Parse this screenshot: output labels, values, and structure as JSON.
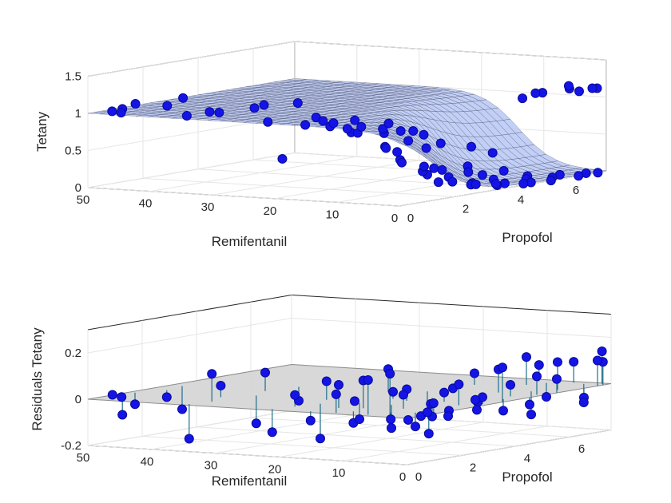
{
  "chart_data": [
    {
      "type": "surface3d",
      "title": "",
      "xlabel": "Remifentanil",
      "ylabel": "Propofol",
      "zlabel": "Tetany",
      "x_ticks": [
        "0",
        "10",
        "20",
        "30",
        "40",
        "50"
      ],
      "y_ticks": [
        "0",
        "2",
        "4",
        "6"
      ],
      "z_ticks": [
        "0",
        "0.5",
        "1",
        "1.5"
      ],
      "xlim": [
        0,
        50
      ],
      "ylim": [
        0,
        7.5
      ],
      "zlim": [
        0,
        1.5
      ],
      "grid": true,
      "colors": {
        "surface": "#b7c7f5",
        "mesh": "#1a1a2e",
        "marker": "#1414e6"
      },
      "model": "fitted surface: Tetany ≈ 1 at high Remifentanil / low Propofol, falling to ≈ 0 at low Remifentanil and moderate-to-high Propofol",
      "series": [
        {
          "points": [
            [
              47,
              0.2,
              1.03
            ],
            [
              48,
              0.8,
              1.02
            ],
            [
              49,
              1.5,
              1.04
            ],
            [
              47,
              2.2,
              0.98
            ],
            [
              48,
              3.0,
              1.03
            ],
            [
              46,
              0.3,
              1.01
            ],
            [
              35,
              0.2,
              1.03
            ],
            [
              34,
              0.8,
              1.05
            ],
            [
              36,
              1.6,
              0.98
            ],
            [
              33,
              2.2,
              1.02
            ],
            [
              35,
              3.0,
              1.0
            ],
            [
              34,
              4.0,
              0.97
            ],
            [
              22,
              0.2,
              1.01
            ],
            [
              21,
              0.5,
              0.5
            ],
            [
              20,
              1.5,
              1.0
            ],
            [
              22,
              2.2,
              0.9
            ],
            [
              21,
              3.0,
              0.7
            ],
            [
              20,
              4.0,
              0.45
            ],
            [
              22,
              5.0,
              0.2
            ],
            [
              21,
              6.0,
              0.03
            ],
            [
              20,
              7.0,
              0.0
            ],
            [
              12,
              0.2,
              1.0
            ],
            [
              11,
              0.6,
              0.95
            ],
            [
              12,
              1.2,
              0.85
            ],
            [
              11,
              2.0,
              0.6
            ],
            [
              12,
              2.8,
              0.35
            ],
            [
              11,
              3.5,
              0.15
            ],
            [
              12,
              4.5,
              0.05
            ],
            [
              11,
              5.5,
              0.02
            ],
            [
              12,
              6.5,
              0.01
            ],
            [
              7,
              0.2,
              1.02
            ],
            [
              6,
              0.8,
              0.9
            ],
            [
              7,
              1.5,
              0.6
            ],
            [
              6,
              2.2,
              0.3
            ],
            [
              7,
              3.0,
              0.1
            ],
            [
              6,
              4.0,
              0.03
            ],
            [
              7,
              5.0,
              0.01
            ],
            [
              6,
              6.0,
              0.0
            ],
            [
              4,
              0.3,
              1.0
            ],
            [
              3,
              1.0,
              0.8
            ],
            [
              4,
              1.8,
              0.4
            ],
            [
              3,
              2.6,
              0.15
            ],
            [
              4,
              3.5,
              0.05
            ],
            [
              3,
              4.5,
              0.01
            ],
            [
              4,
              5.5,
              0.0
            ],
            [
              3,
              6.5,
              0.0
            ],
            [
              2,
              0.5,
              0.97
            ],
            [
              1,
              1.2,
              0.7
            ],
            [
              2,
              2.0,
              0.35
            ],
            [
              1,
              3.0,
              0.1
            ],
            [
              2,
              4.0,
              0.02
            ],
            [
              1,
              5.0,
              0.0
            ],
            [
              2,
              6.0,
              0.0
            ],
            [
              1,
              7.0,
              0.0
            ],
            [
              0,
              0.5,
              0.98
            ],
            [
              0,
              1.5,
              0.75
            ],
            [
              0,
              2.5,
              0.3
            ],
            [
              0,
              3.5,
              0.08
            ],
            [
              0,
              4.5,
              0.02
            ],
            [
              0,
              5.5,
              0.0
            ],
            [
              0,
              6.5,
              0.0
            ],
            [
              0,
              7.2,
              0.0
            ],
            [
              16,
              0.2,
              1.0
            ],
            [
              15,
              1.0,
              0.98
            ],
            [
              16,
              2.0,
              0.95
            ],
            [
              15,
              3.0,
              0.85
            ],
            [
              16,
              4.5,
              0.6
            ],
            [
              15,
              6.0,
              0.35
            ],
            [
              16,
              7.0,
              0.2
            ],
            [
              9,
              6.5,
              1.0
            ],
            [
              8,
              7.0,
              1.05
            ],
            [
              5,
              7.3,
              1.1
            ],
            [
              3,
              7.2,
              1.08
            ],
            [
              1,
              7.4,
              1.12
            ],
            [
              0,
              7.0,
              1.15
            ],
            [
              10,
              7.2,
              1.02
            ],
            [
              6,
              7.5,
              1.12
            ]
          ]
        }
      ]
    },
    {
      "type": "stem3d",
      "title": "",
      "xlabel": "Remifentanil",
      "ylabel": "Propofol",
      "zlabel": "Residuals Tetany",
      "x_ticks": [
        "0",
        "10",
        "20",
        "30",
        "40",
        "50"
      ],
      "y_ticks": [
        "0",
        "2",
        "4",
        "6"
      ],
      "z_ticks": [
        "-0.2",
        "0",
        "0.2"
      ],
      "xlim": [
        0,
        50
      ],
      "ylim": [
        0,
        7.5
      ],
      "zlim": [
        -0.2,
        0.3
      ],
      "grid": true,
      "colors": {
        "plane": "#d4d4d4",
        "stem": "#1f6f8b",
        "marker": "#1414e6"
      },
      "series": [
        {
          "points": [
            [
              47,
              0.2,
              0.02
            ],
            [
              48,
              0.8,
              -0.08
            ],
            [
              49,
              1.5,
              -0.05
            ],
            [
              47,
              2.2,
              -0.03
            ],
            [
              48,
              3.0,
              -0.1
            ],
            [
              46,
              0.3,
              0.01
            ],
            [
              35,
              0.2,
              -0.15
            ],
            [
              34,
              0.8,
              0.12
            ],
            [
              36,
              1.6,
              0.05
            ],
            [
              33,
              2.2,
              -0.12
            ],
            [
              35,
              3.0,
              0.08
            ],
            [
              34,
              4.0,
              -0.06
            ],
            [
              22,
              0.2,
              -0.1
            ],
            [
              21,
              0.8,
              0.05
            ],
            [
              20,
              1.5,
              -0.15
            ],
            [
              22,
              2.2,
              0.08
            ],
            [
              21,
              3.0,
              -0.02
            ],
            [
              20,
              4.0,
              0.1
            ],
            [
              12,
              0.2,
              0.08
            ],
            [
              11,
              0.6,
              -0.05
            ],
            [
              12,
              1.2,
              0.12
            ],
            [
              11,
              2.0,
              -0.1
            ],
            [
              12,
              2.8,
              0.05
            ],
            [
              11,
              3.5,
              -0.08
            ],
            [
              12,
              4.5,
              0.02
            ],
            [
              7,
              0.2,
              0.15
            ],
            [
              6,
              0.8,
              -0.03
            ],
            [
              7,
              1.5,
              0.06
            ],
            [
              6,
              2.2,
              -0.12
            ],
            [
              7,
              3.0,
              0.04
            ],
            [
              6,
              4.0,
              -0.02
            ],
            [
              7,
              5.0,
              0.1
            ],
            [
              4,
              0.3,
              0.18
            ],
            [
              3,
              1.0,
              -0.06
            ],
            [
              4,
              1.8,
              0.02
            ],
            [
              3,
              2.6,
              0.09
            ],
            [
              4,
              3.5,
              -0.04
            ],
            [
              3,
              4.5,
              0.05
            ],
            [
              4,
              5.5,
              -0.1
            ],
            [
              2,
              0.5,
              -0.02
            ],
            [
              1,
              1.2,
              0.04
            ],
            [
              2,
              2.0,
              -0.01
            ],
            [
              1,
              3.0,
              0.03
            ],
            [
              2,
              4.0,
              -0.05
            ],
            [
              1,
              5.0,
              0.08
            ],
            [
              2,
              6.0,
              0.12
            ],
            [
              0,
              0.5,
              0.0
            ],
            [
              0,
              1.5,
              -0.02
            ],
            [
              0,
              2.5,
              0.03
            ],
            [
              0,
              3.5,
              0.15
            ],
            [
              0,
              4.5,
              -0.03
            ],
            [
              0,
              5.5,
              0.06
            ],
            [
              0,
              6.5,
              -0.04
            ],
            [
              0,
              7.2,
              0.1
            ],
            [
              16,
              0.2,
              -0.04
            ],
            [
              15,
              1.0,
              0.1
            ],
            [
              16,
              2.0,
              -0.07
            ],
            [
              15,
              3.0,
              0.03
            ],
            [
              16,
              4.5,
              -0.09
            ],
            [
              15,
              6.0,
              0.05
            ],
            [
              9,
              6.5,
              0.12
            ],
            [
              8,
              7.0,
              -0.06
            ],
            [
              5,
              7.3,
              0.09
            ],
            [
              3,
              7.2,
              -0.08
            ],
            [
              1,
              7.4,
              0.14
            ],
            [
              0,
              7.0,
              0.11
            ],
            [
              10,
              7.2,
              0.07
            ]
          ]
        }
      ]
    }
  ]
}
